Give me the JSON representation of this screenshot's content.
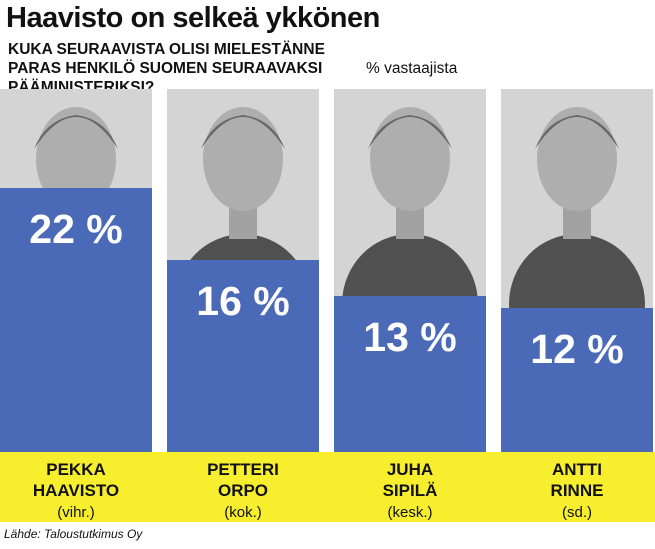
{
  "chart_data": {
    "type": "bar",
    "title": "Haavisto on selkeä ykkönen",
    "question": "KUKA SEURAAVISTA OLISI MIELESTÄNNE PARAS HENKILÖ SUOMEN SEURAAVAKSI PÄÄMINISTERIKSI?",
    "unit": "% vastaajista",
    "categories": [
      "PEKKA HAAVISTO",
      "PETTERI ORPO",
      "JUHA SIPILÄ",
      "ANTTI RINNE"
    ],
    "name_lines": [
      [
        "PEKKA",
        "HAAVISTO"
      ],
      [
        "PETTERI",
        "ORPO"
      ],
      [
        "JUHA",
        "SIPILÄ"
      ],
      [
        "ANTTI",
        "RINNE"
      ]
    ],
    "parties": [
      "(vihr.)",
      "(kok.)",
      "(kesk.)",
      "(sd.)"
    ],
    "values": [
      22,
      16,
      13,
      12
    ],
    "value_labels": [
      "22 %",
      "16 %",
      "13 %",
      "12 %"
    ],
    "source": "Lähde: Taloustutkimus Oy"
  },
  "colors": {
    "bar": "#4a69b7",
    "label_band": "#f7ef2e",
    "photo_bg": "#d4d4d4",
    "photo_dark": "#3a3a3a",
    "text": "#111111",
    "bar_text": "#ffffff"
  },
  "icons": [
    "person-portrait-icon"
  ]
}
